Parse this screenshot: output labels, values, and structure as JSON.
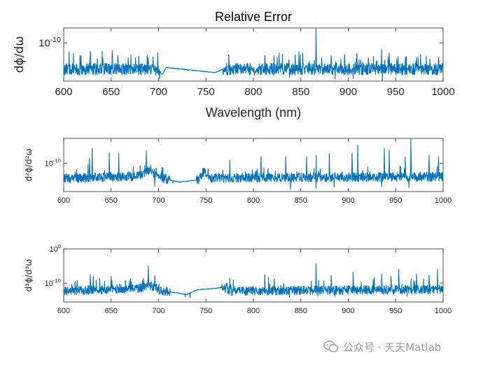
{
  "watermark": {
    "text": "公众号 · 天天Matlab"
  },
  "chart_data": [
    {
      "type": "line",
      "title": "Relative Error",
      "ylabel": "dϕ/dω",
      "xlabel": "Wavelength (nm)",
      "xlim": [
        600,
        1000
      ],
      "yscale": "log",
      "ylim_log10": [
        -10.9,
        -9.65
      ],
      "xticks": [
        600,
        650,
        700,
        750,
        800,
        850,
        900,
        950,
        1000
      ],
      "xtick_labels": [
        "600",
        "650",
        "700",
        "750",
        "800",
        "850",
        "900",
        "950",
        "1000"
      ],
      "ytick_labels": [
        {
          "base": "10",
          "exp": "-10",
          "log10": -10
        }
      ],
      "series_color": "#0072BD",
      "series": [
        {
          "name": "relative error",
          "profile": [
            [
              600,
              -10.62
            ],
            [
              700,
              -10.62
            ],
            [
              704,
              -10.75
            ],
            [
              708,
              -10.58
            ],
            [
              760,
              -10.7
            ],
            [
              768,
              -10.62
            ],
            [
              1000,
              -10.62
            ]
          ],
          "noisy_ranges": [
            [
              600,
              700
            ],
            [
              768,
              1000
            ]
          ],
          "quiet_ranges": [
            [
              708,
              768
            ]
          ],
          "noise_amplitude": 0.14,
          "peaks": [
            [
              617,
              -10.3
            ],
            [
              628,
              -10.2
            ],
            [
              641,
              -10.35
            ],
            [
              651,
              -10.18
            ],
            [
              657,
              -10.3
            ],
            [
              668,
              -10.35
            ],
            [
              688,
              -10.3
            ],
            [
              774,
              -10.28
            ],
            [
              812,
              -10.3
            ],
            [
              825,
              -10.35
            ],
            [
              844,
              -10.28
            ],
            [
              852,
              -10.24
            ],
            [
              866,
              -9.65
            ],
            [
              872,
              -10.36
            ],
            [
              882,
              -10.3
            ],
            [
              896,
              -10.28
            ],
            [
              909,
              -10.25
            ],
            [
              921,
              -10.35
            ],
            [
              935,
              -10.15
            ],
            [
              943,
              -10.24
            ],
            [
              951,
              -10.37
            ],
            [
              961,
              -10.32
            ],
            [
              972,
              -10.35
            ],
            [
              986,
              -10.38
            ],
            [
              995,
              -10.35
            ]
          ],
          "dips": [
            [
              701,
              -10.85
            ],
            [
              936,
              -10.9
            ],
            [
              886,
              -10.85
            ],
            [
              905,
              -10.84
            ],
            [
              838,
              -10.82
            ]
          ]
        }
      ]
    },
    {
      "type": "line",
      "ylabel": "d²ϕ/d²ω",
      "xlim": [
        600,
        1000
      ],
      "yscale": "log",
      "ylim_log10": [
        -10.85,
        -9.25
      ],
      "xticks": [
        600,
        650,
        700,
        750,
        800,
        850,
        900,
        950,
        1000
      ],
      "xtick_labels": [
        "600",
        "650",
        "700",
        "750",
        "800",
        "850",
        "900",
        "950",
        "1000"
      ],
      "ytick_labels": [
        {
          "base": "10",
          "exp": "-10",
          "log10": -10
        }
      ],
      "series_color": "#0072BD",
      "series": [
        {
          "name": "relative error",
          "profile": [
            [
              600,
              -10.45
            ],
            [
              680,
              -10.38
            ],
            [
              690,
              -10.2
            ],
            [
              700,
              -10.4
            ],
            [
              710,
              -10.5
            ],
            [
              722,
              -10.56
            ],
            [
              742,
              -10.5
            ],
            [
              748,
              -10.22
            ],
            [
              755,
              -10.44
            ],
            [
              770,
              -10.44
            ],
            [
              1000,
              -10.4
            ]
          ],
          "noisy_ranges": [
            [
              600,
              712
            ],
            [
              740,
              1000
            ]
          ],
          "quiet_ranges": [
            [
              712,
              740
            ]
          ],
          "noise_amplitude": 0.14,
          "peaks": [
            [
              627,
              -9.85
            ],
            [
              630,
              -9.55
            ],
            [
              648,
              -9.68
            ],
            [
              658,
              -9.7
            ],
            [
              687,
              -9.62
            ],
            [
              775,
              -9.9
            ],
            [
              808,
              -9.8
            ],
            [
              834,
              -9.8
            ],
            [
              856,
              -9.8
            ],
            [
              866,
              -9.25
            ],
            [
              880,
              -9.7
            ],
            [
              904,
              -9.7
            ],
            [
              910,
              -9.45
            ],
            [
              938,
              -9.55
            ],
            [
              943,
              -9.6
            ],
            [
              960,
              -9.8
            ],
            [
              966,
              -9.25
            ],
            [
              985,
              -9.75
            ],
            [
              995,
              -9.8
            ]
          ],
          "dips": [
            [
              696,
              -10.7
            ],
            [
              715,
              -10.6
            ],
            [
              839,
              -10.78
            ],
            [
              866,
              -10.75
            ],
            [
              885,
              -10.72
            ],
            [
              964,
              -10.73
            ],
            [
              935,
              -10.7
            ]
          ]
        }
      ]
    },
    {
      "type": "line",
      "ylabel": "d³ϕ/d³ω",
      "xlim": [
        600,
        1000
      ],
      "yscale": "log",
      "ylim_log10": [
        -15.5,
        0
      ],
      "xticks": [
        600,
        650,
        700,
        750,
        800,
        850,
        900,
        950,
        1000
      ],
      "xtick_labels": [
        "600",
        "650",
        "700",
        "750",
        "800",
        "850",
        "900",
        "950",
        "1000"
      ],
      "ytick_labels": [
        {
          "base": "10",
          "exp": "0",
          "log10": 0
        },
        {
          "base": "10",
          "exp": "-10",
          "log10": -10
        }
      ],
      "series_color": "#0072BD",
      "series": [
        {
          "name": "relative error",
          "profile": [
            [
              600,
              -12.3
            ],
            [
              680,
              -11.5
            ],
            [
              690,
              -10.5
            ],
            [
              700,
              -12.0
            ],
            [
              730,
              -13.3
            ],
            [
              740,
              -12.0
            ],
            [
              768,
              -11.3
            ],
            [
              775,
              -12.3
            ],
            [
              1000,
              -11.8
            ]
          ],
          "noisy_ranges": [
            [
              600,
              712
            ],
            [
              766,
              1000
            ]
          ],
          "quiet_ranges": [
            [
              712,
              766
            ]
          ],
          "noise_amplitude": 1.3,
          "peaks": [
            [
              612,
              -9.5
            ],
            [
              628,
              -7.5
            ],
            [
              631,
              -8.0
            ],
            [
              650,
              -8.0
            ],
            [
              665,
              -9.2
            ],
            [
              689,
              -5.0
            ],
            [
              696,
              -7.8
            ],
            [
              775,
              -8.5
            ],
            [
              812,
              -7.5
            ],
            [
              822,
              -8.7
            ],
            [
              866,
              -4.3
            ],
            [
              882,
              -7.8
            ],
            [
              905,
              -6.8
            ],
            [
              935,
              -7.3
            ],
            [
              945,
              -8.0
            ],
            [
              953,
              -6.0
            ],
            [
              972,
              -7.3
            ],
            [
              985,
              -7.7
            ],
            [
              994,
              -6.0
            ]
          ],
          "dips": [
            [
              728,
              -14.0
            ],
            [
              733,
              -14.3
            ],
            [
              838,
              -14.0
            ],
            [
              868,
              -13.8
            ],
            [
              886,
              -13.9
            ],
            [
              962,
              -13.8
            ]
          ]
        }
      ]
    }
  ]
}
